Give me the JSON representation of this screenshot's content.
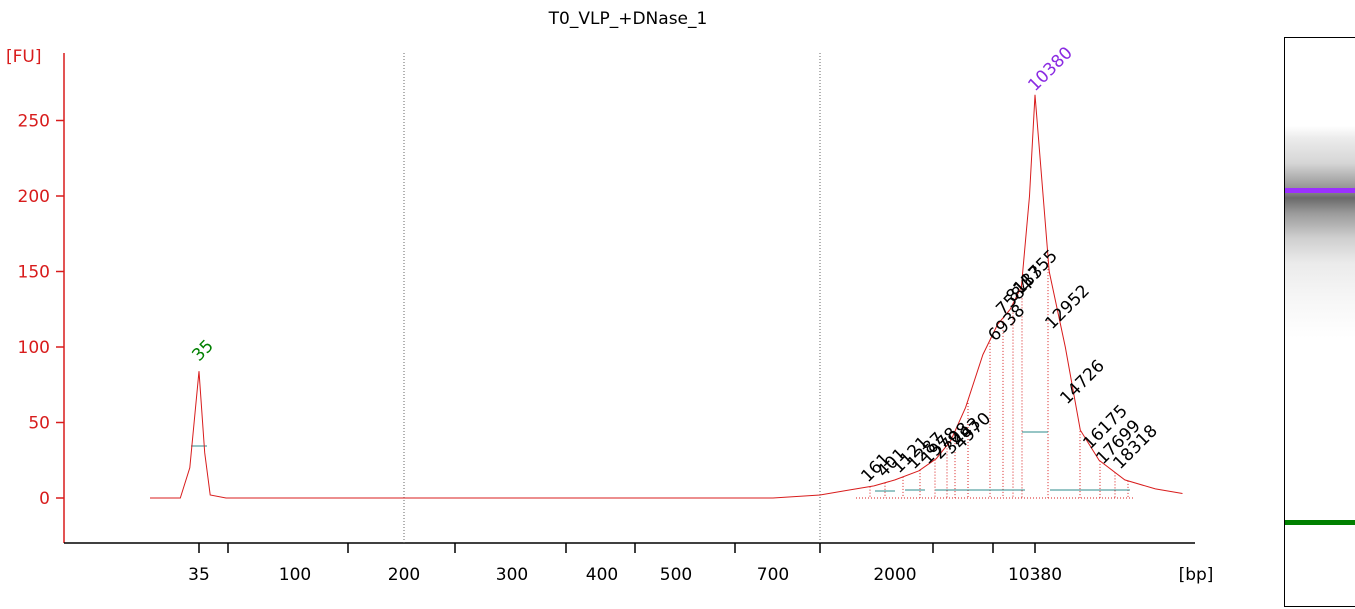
{
  "chart_data": {
    "type": "line",
    "title": "T0_VLP_+DNase_1",
    "ylabel": "[FU]",
    "xlabel": "[bp]",
    "ylim": [
      -25,
      250
    ],
    "yticks": [
      0,
      50,
      100,
      150,
      200,
      250
    ],
    "xticks": [
      "35",
      "100",
      "200",
      "300",
      "400",
      "500",
      "700",
      "2000",
      "10380"
    ],
    "peaks": [
      {
        "bp": "35",
        "fu": 84,
        "color": "#008000"
      },
      {
        "bp": "10380",
        "fu": 267,
        "color": "#8a2be2"
      }
    ],
    "region_labels": [
      "161",
      "401",
      "1121",
      "1287",
      "1978",
      "2708",
      "3443",
      "4970",
      "6938",
      "7584",
      "8183",
      "11755",
      "12952",
      "14726",
      "16175",
      "17699",
      "18318"
    ],
    "series": [
      {
        "color": "#d81c1c",
        "x": [
          30,
          33,
          34,
          35,
          36,
          37,
          40,
          100,
          200,
          300,
          400,
          500,
          700,
          900,
          1200,
          1600,
          2000,
          2600,
          3200,
          4000,
          5000,
          6000,
          7000,
          8000,
          9000,
          9800,
          10380,
          11000,
          11755,
          12500,
          13500,
          15000,
          17000,
          19000
        ],
        "y": [
          0,
          0,
          20,
          84,
          30,
          2,
          0,
          0,
          0,
          0,
          0,
          0,
          0,
          2,
          5,
          8,
          12,
          18,
          26,
          38,
          60,
          95,
          115,
          125,
          140,
          200,
          267,
          150,
          100,
          45,
          25,
          12,
          6,
          3
        ]
      }
    ]
  },
  "gel": {
    "upper_band_color": "#9b30ff",
    "lower_band_color": "#008000"
  }
}
